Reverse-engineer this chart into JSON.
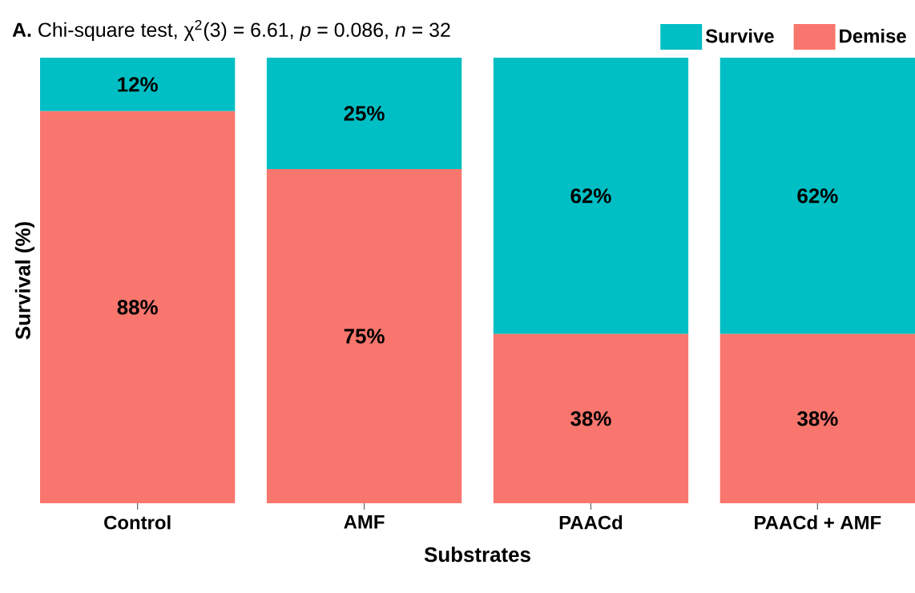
{
  "chart_data": {
    "type": "bar",
    "title": "**A.** Chi-square test, χ$^{2}$(3) = 6.61, *p* = 0.086, *n* = 32",
    "xlabel": "Substrates",
    "ylabel": "Survival (%)",
    "categories": [
      "Control",
      "AMF",
      "PAACd",
      "PAACd + AMF"
    ],
    "series": [
      {
        "name": "Demise",
        "color": "#f8766d",
        "values": [
          88,
          75,
          38,
          38
        ],
        "value_labels": [
          "88%",
          "75%",
          "38%",
          "38%"
        ]
      },
      {
        "name": "Survive",
        "color": "#00bfc4",
        "values": [
          12,
          25,
          62,
          62
        ],
        "value_labels": [
          "12%",
          "25%",
          "62%",
          "62%"
        ]
      }
    ],
    "stacked": true,
    "ylim": [
      0,
      100
    ],
    "tick_labels": "x",
    "legend": "top right"
  }
}
